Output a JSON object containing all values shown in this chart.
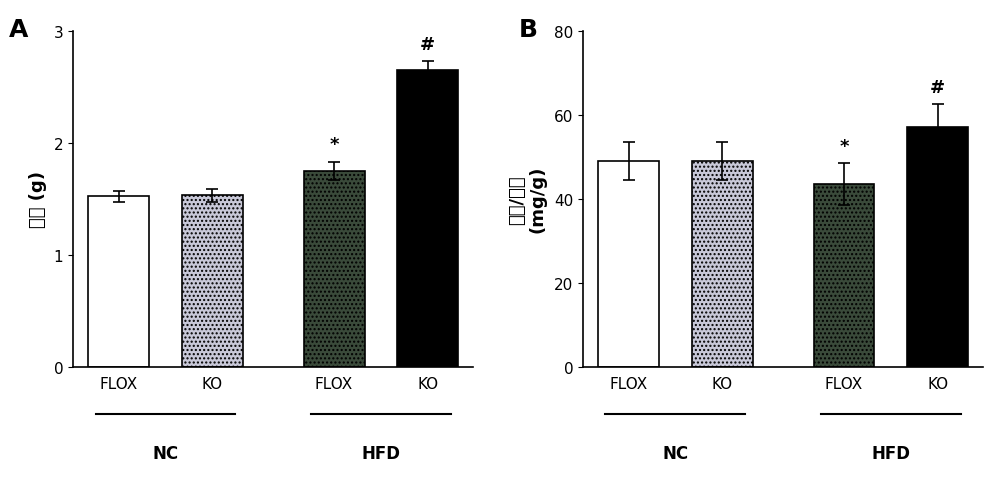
{
  "panel_A": {
    "title": "A",
    "ylabel": "肝重 (g)",
    "categories": [
      "FLOX",
      "KO",
      "FLOX",
      "KO"
    ],
    "group_labels": [
      "NC",
      "HFD"
    ],
    "values": [
      1.52,
      1.53,
      1.75,
      2.65
    ],
    "errors": [
      0.05,
      0.06,
      0.08,
      0.08
    ],
    "colors": [
      "#ffffff",
      "#c8c8d8",
      "#3a4a3a",
      "#000000"
    ],
    "hatch": [
      "",
      "....",
      "....",
      ""
    ],
    "edge_colors": [
      "#000000",
      "#000000",
      "#000000",
      "#000000"
    ],
    "ylim": [
      0,
      3
    ],
    "yticks": [
      0,
      1,
      2,
      3
    ],
    "annotations": [
      "",
      "",
      "*",
      "#"
    ]
  },
  "panel_B": {
    "title": "B",
    "ylabel": "肝脏/体重\n(mg/g)",
    "categories": [
      "FLOX",
      "KO",
      "FLOX",
      "KO"
    ],
    "group_labels": [
      "NC",
      "HFD"
    ],
    "values": [
      49.0,
      49.0,
      43.5,
      57.0
    ],
    "errors": [
      4.5,
      4.5,
      5.0,
      5.5
    ],
    "colors": [
      "#ffffff",
      "#c8c8d8",
      "#3a4a3a",
      "#000000"
    ],
    "hatch": [
      "",
      "....",
      "....",
      ""
    ],
    "edge_colors": [
      "#000000",
      "#000000",
      "#000000",
      "#000000"
    ],
    "ylim": [
      0,
      80
    ],
    "yticks": [
      0,
      20,
      40,
      60,
      80
    ],
    "annotations": [
      "",
      "",
      "*",
      "#"
    ]
  },
  "bar_width": 0.65,
  "x_positions": [
    0,
    1,
    2.3,
    3.3
  ],
  "font_size_label": 12,
  "font_size_tick": 11,
  "font_size_title": 18,
  "font_size_annot": 13,
  "background_color": "#ffffff"
}
